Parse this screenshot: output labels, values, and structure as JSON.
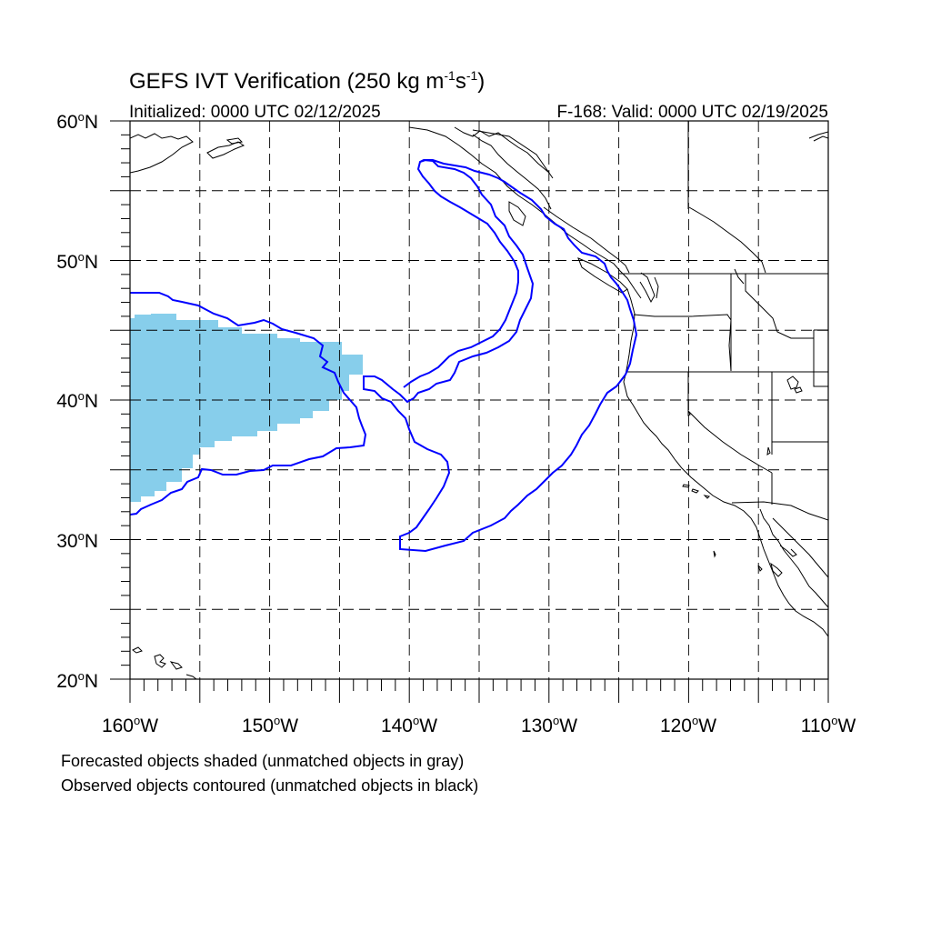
{
  "title": {
    "main": "GEFS IVT Verification (250 kg m",
    "sup1": "-1",
    "mid": "s",
    "sup2": "-1",
    "end": ")"
  },
  "subtitle_left": "Initialized: 0000 UTC 02/12/2025",
  "subtitle_right": "F-168: Valid: 0000 UTC 02/19/2025",
  "lat_labels": [
    {
      "deg": "60",
      "hem": "N"
    },
    {
      "deg": "50",
      "hem": "N"
    },
    {
      "deg": "40",
      "hem": "N"
    },
    {
      "deg": "30",
      "hem": "N"
    },
    {
      "deg": "20",
      "hem": "N"
    }
  ],
  "lon_labels": [
    {
      "deg": "160",
      "hem": "W"
    },
    {
      "deg": "150",
      "hem": "W"
    },
    {
      "deg": "140",
      "hem": "W"
    },
    {
      "deg": "130",
      "hem": "W"
    },
    {
      "deg": "120",
      "hem": "W"
    },
    {
      "deg": "110",
      "hem": "W"
    }
  ],
  "degree_symbol": "o",
  "map_extent": {
    "lon": [
      -160,
      -110
    ],
    "lat": [
      20,
      60
    ]
  },
  "colors": {
    "forecast_fill": "#87ceeb",
    "observed_contour": "#0000ff",
    "coastline": "#000000",
    "grid": "#000000"
  },
  "footnotes": [
    "Forecasted objects shaded (unmatched objects in gray)",
    "Observed objects contoured (unmatched objects in black)"
  ]
}
